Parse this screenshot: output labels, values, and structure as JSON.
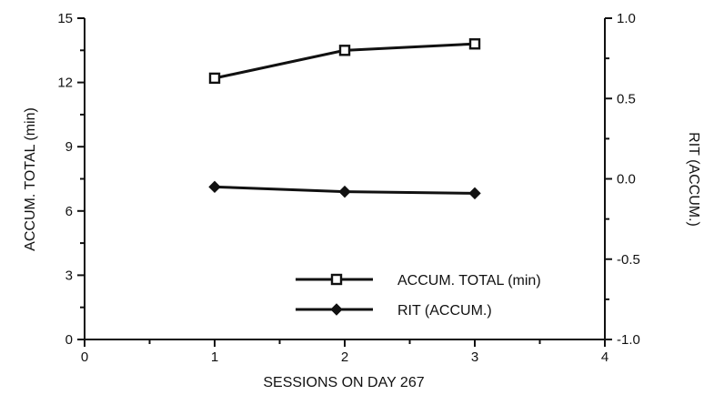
{
  "chart_data": {
    "type": "line",
    "xlabel": "SESSIONS ON DAY 267",
    "ylabel_left": "ACCUM. TOTAL (min)",
    "ylabel_right": "RIT (ACCUM.)",
    "x_ticks": [
      "0",
      "1",
      "2",
      "3",
      "4"
    ],
    "y_left_ticks": [
      "0",
      "3",
      "6",
      "9",
      "12",
      "15"
    ],
    "y_right_ticks": [
      "-1.0",
      "-0.5",
      "0.0",
      "0.5",
      "1.0"
    ],
    "xlim": [
      0,
      4
    ],
    "ylim_left": [
      0,
      15
    ],
    "ylim_right": [
      -1.0,
      1.0
    ],
    "grid": false,
    "legend_position": "bottom-right",
    "series": [
      {
        "name": "ACCUM. TOTAL (min)",
        "axis": "left",
        "marker": "open-square",
        "x": [
          1,
          2,
          3
        ],
        "y": [
          12.2,
          13.5,
          13.8
        ]
      },
      {
        "name": "RIT (ACCUM.)",
        "axis": "right",
        "marker": "filled-diamond",
        "x": [
          1,
          2,
          3
        ],
        "y": [
          -0.05,
          -0.08,
          -0.09
        ]
      }
    ]
  }
}
